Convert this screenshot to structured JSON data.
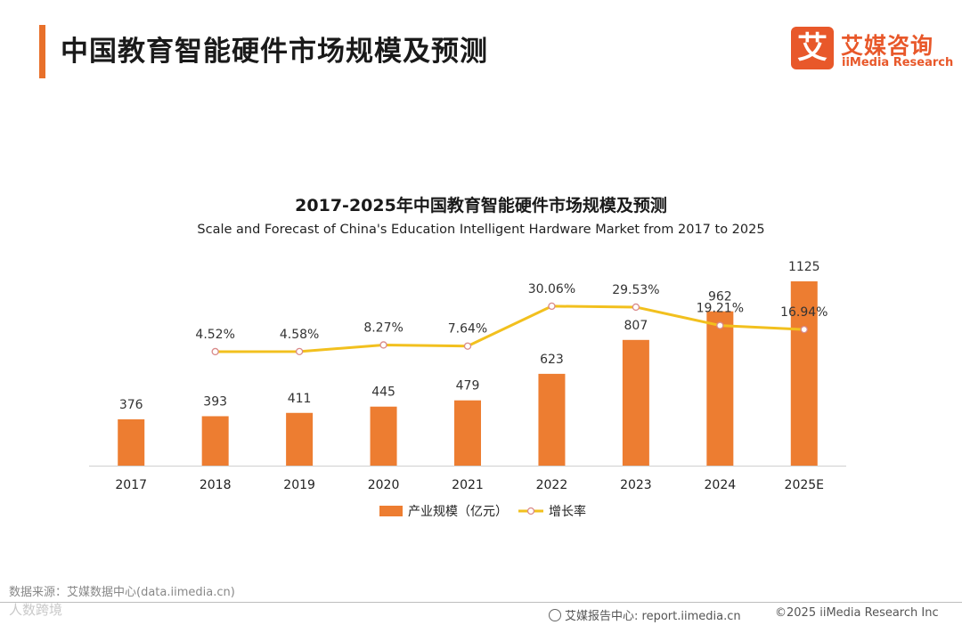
{
  "header": {
    "title": "中国教育智能硬件市场规模及预测"
  },
  "logo": {
    "mark": "艾",
    "name_cn": "艾媒咨询",
    "name_en": "iiMedia Research",
    "brand_color": "#e8582a"
  },
  "chart_data": {
    "type": "bar",
    "title": "2017-2025年中国教育智能硬件市场规模及预测",
    "subtitle": "Scale and Forecast of China's Education Intelligent Hardware Market from 2017 to 2025",
    "categories": [
      "2017",
      "2018",
      "2019",
      "2020",
      "2021",
      "2022",
      "2023",
      "2024",
      "2025E"
    ],
    "series": [
      {
        "name": "产业规模（亿元）",
        "kind": "bar",
        "color": "#ed7d31",
        "values": [
          376,
          393,
          411,
          445,
          479,
          623,
          807,
          962,
          1125
        ],
        "labels": [
          "376",
          "393",
          "411",
          "445",
          "479",
          "623",
          "807",
          "962",
          "1125"
        ]
      },
      {
        "name": "增长率",
        "kind": "line",
        "color": "#f2c01e",
        "values": [
          null,
          4.52,
          4.58,
          8.27,
          7.64,
          30.06,
          29.53,
          19.21,
          16.94
        ],
        "labels": [
          "",
          "4.52%",
          "4.58%",
          "8.27%",
          "7.64%",
          "30.06%",
          "29.53%",
          "19.21%",
          "16.94%"
        ]
      }
    ],
    "xlabel": "",
    "ylabel": "",
    "bar_ylim": [
      0,
      1300
    ],
    "line_ylim": [
      0,
      45
    ],
    "grid": false,
    "legend_position": "bottom-center"
  },
  "footer": {
    "source": "数据来源：艾媒数据中心(data.iimedia.cn)",
    "watermark": "人数跨境",
    "report_center": "艾媒报告中心: report.iimedia.cn",
    "copyright": "©2025  iiMedia Research  Inc"
  }
}
